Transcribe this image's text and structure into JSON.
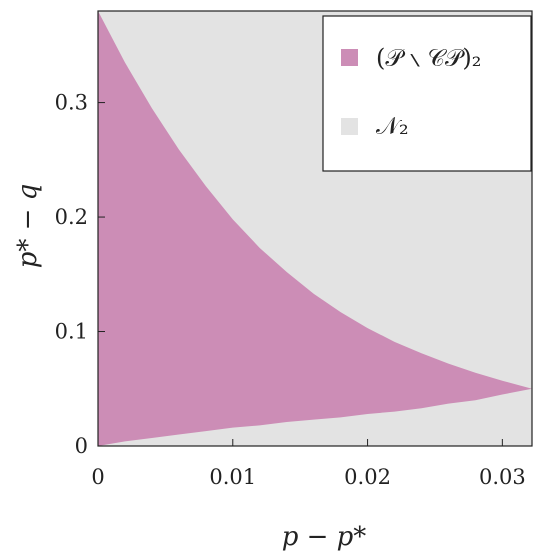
{
  "chart_data": {
    "type": "area",
    "xlabel": "p − p*",
    "ylabel": "p* − q",
    "xlim": [
      0,
      0.0322
    ],
    "ylim": [
      0,
      0.38
    ],
    "x_ticks": [
      {
        "value": 0,
        "label": "0"
      },
      {
        "value": 0.01,
        "label": "0.01"
      },
      {
        "value": 0.02,
        "label": "0.02"
      },
      {
        "value": 0.03,
        "label": "0.03"
      }
    ],
    "y_ticks": [
      {
        "value": 0,
        "label": "0"
      },
      {
        "value": 0.1,
        "label": "0.1"
      },
      {
        "value": 0.2,
        "label": "0.2"
      },
      {
        "value": 0.3,
        "label": "0.3"
      }
    ],
    "grid": false,
    "legend_position": "top-right",
    "series": [
      {
        "name": "(𝒫 ∖ 𝒞𝒫)₂",
        "color": "#cc8db6",
        "upper": {
          "x": [
            0,
            0.002,
            0.004,
            0.006,
            0.008,
            0.01,
            0.012,
            0.014,
            0.016,
            0.018,
            0.02,
            0.022,
            0.024,
            0.026,
            0.028,
            0.03,
            0.0322
          ],
          "y": [
            0.38,
            0.335,
            0.295,
            0.259,
            0.227,
            0.198,
            0.173,
            0.152,
            0.133,
            0.117,
            0.103,
            0.091,
            0.081,
            0.072,
            0.064,
            0.057,
            0.05
          ]
        },
        "lower": {
          "x": [
            0,
            0.002,
            0.004,
            0.006,
            0.008,
            0.01,
            0.012,
            0.014,
            0.016,
            0.018,
            0.02,
            0.022,
            0.024,
            0.026,
            0.028,
            0.03,
            0.0322
          ],
          "y": [
            0.0,
            0.004,
            0.007,
            0.01,
            0.013,
            0.016,
            0.018,
            0.021,
            0.023,
            0.025,
            0.028,
            0.03,
            0.033,
            0.037,
            0.04,
            0.045,
            0.05
          ]
        }
      },
      {
        "name": "𝒩₂",
        "color": "#e3e3e3",
        "fill": "full-plot-background"
      }
    ]
  }
}
